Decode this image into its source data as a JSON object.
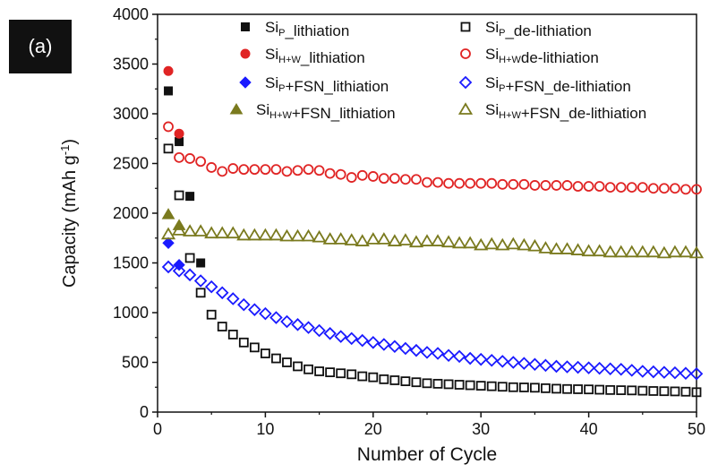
{
  "panel_label": "(a)",
  "colors": {
    "black": "#111111",
    "red": "#e02424",
    "blue": "#1a1aff",
    "olive": "#7a7a1e"
  },
  "chart_data": {
    "type": "scatter",
    "xlabel": "Number of Cycle",
    "ylabel": "Capacity (mAh g-1)",
    "ylabel_parts": {
      "main": "Capacity (mAh g",
      "sup": "-1",
      "close": ")"
    },
    "xlim": [
      0,
      50
    ],
    "ylim": [
      0,
      4000
    ],
    "xticks": [
      0,
      10,
      20,
      30,
      40,
      50
    ],
    "yticks": [
      0,
      500,
      1000,
      1500,
      2000,
      2500,
      3000,
      3500,
      4000
    ],
    "grid": false,
    "legend_position": "top",
    "series": [
      {
        "name": "SiP_lithiation",
        "label_parts": [
          [
            "Si",
            ""
          ],
          [
            "P",
            "sub"
          ],
          [
            "_lithiation",
            ""
          ]
        ],
        "color": "black",
        "marker": "square",
        "filled": true,
        "x": [
          1,
          2,
          3,
          4
        ],
        "y": [
          3230,
          2720,
          2170,
          1500
        ]
      },
      {
        "name": "SiP_de-lithiation",
        "label_parts": [
          [
            "Si",
            ""
          ],
          [
            "P",
            "sub"
          ],
          [
            "_de-lithiation",
            ""
          ]
        ],
        "color": "black",
        "marker": "square",
        "filled": false,
        "x": [
          1,
          2,
          3,
          4,
          5,
          6,
          7,
          8,
          9,
          10,
          11,
          12,
          13,
          14,
          15,
          16,
          17,
          18,
          19,
          20,
          21,
          22,
          23,
          24,
          25,
          26,
          27,
          28,
          29,
          30,
          31,
          32,
          33,
          34,
          35,
          36,
          37,
          38,
          39,
          40,
          41,
          42,
          43,
          44,
          45,
          46,
          47,
          48,
          49,
          50
        ],
        "y": [
          2650,
          2180,
          1550,
          1200,
          980,
          860,
          780,
          700,
          650,
          590,
          540,
          500,
          460,
          430,
          410,
          400,
          390,
          380,
          360,
          350,
          330,
          320,
          310,
          300,
          290,
          285,
          280,
          275,
          270,
          265,
          260,
          255,
          250,
          248,
          245,
          240,
          235,
          232,
          230,
          228,
          225,
          222,
          220,
          218,
          215,
          212,
          210,
          208,
          205,
          200
        ]
      },
      {
        "name": "SiH+W_lithiation",
        "label_parts": [
          [
            "Si",
            ""
          ],
          [
            "H+W",
            "sub"
          ],
          [
            "_lithiation",
            ""
          ]
        ],
        "color": "red",
        "marker": "circle",
        "filled": true,
        "x": [
          1,
          2
        ],
        "y": [
          3430,
          2800
        ]
      },
      {
        "name": "SiH+W_de-lithiation",
        "label_parts": [
          [
            "Si",
            ""
          ],
          [
            "H+W",
            "sub"
          ],
          [
            "de-lithiation",
            ""
          ]
        ],
        "color": "red",
        "marker": "circle",
        "filled": false,
        "x": [
          1,
          2,
          3,
          4,
          5,
          6,
          7,
          8,
          9,
          10,
          11,
          12,
          13,
          14,
          15,
          16,
          17,
          18,
          19,
          20,
          21,
          22,
          23,
          24,
          25,
          26,
          27,
          28,
          29,
          30,
          31,
          32,
          33,
          34,
          35,
          36,
          37,
          38,
          39,
          40,
          41,
          42,
          43,
          44,
          45,
          46,
          47,
          48,
          49,
          50
        ],
        "y": [
          2870,
          2560,
          2550,
          2520,
          2460,
          2420,
          2450,
          2440,
          2440,
          2440,
          2440,
          2420,
          2430,
          2440,
          2430,
          2400,
          2390,
          2360,
          2380,
          2370,
          2350,
          2350,
          2340,
          2340,
          2310,
          2310,
          2300,
          2300,
          2300,
          2300,
          2300,
          2290,
          2290,
          2290,
          2280,
          2280,
          2280,
          2280,
          2270,
          2270,
          2270,
          2260,
          2260,
          2260,
          2260,
          2250,
          2250,
          2250,
          2240,
          2240
        ]
      },
      {
        "name": "SiP+FSN_lithiation",
        "label_parts": [
          [
            "Si",
            ""
          ],
          [
            "P",
            "sub"
          ],
          [
            "+FSN_lithiation",
            ""
          ]
        ],
        "color": "blue",
        "marker": "diamond",
        "filled": true,
        "x": [
          1,
          2
        ],
        "y": [
          1700,
          1480
        ]
      },
      {
        "name": "SiP+FSN_de-lithiation",
        "label_parts": [
          [
            "Si",
            ""
          ],
          [
            "P",
            "sub"
          ],
          [
            "+FSN_de-lithiation",
            ""
          ]
        ],
        "color": "blue",
        "marker": "diamond",
        "filled": false,
        "x": [
          1,
          2,
          3,
          4,
          5,
          6,
          7,
          8,
          9,
          10,
          11,
          12,
          13,
          14,
          15,
          16,
          17,
          18,
          19,
          20,
          21,
          22,
          23,
          24,
          25,
          26,
          27,
          28,
          29,
          30,
          31,
          32,
          33,
          34,
          35,
          36,
          37,
          38,
          39,
          40,
          41,
          42,
          43,
          44,
          45,
          46,
          47,
          48,
          49,
          50
        ],
        "y": [
          1460,
          1420,
          1380,
          1320,
          1260,
          1200,
          1140,
          1080,
          1030,
          990,
          950,
          910,
          880,
          850,
          820,
          790,
          760,
          740,
          720,
          700,
          680,
          660,
          640,
          620,
          600,
          590,
          570,
          560,
          540,
          530,
          520,
          510,
          500,
          490,
          480,
          470,
          460,
          455,
          450,
          445,
          440,
          435,
          430,
          420,
          410,
          405,
          400,
          395,
          390,
          385
        ]
      },
      {
        "name": "SiH+W+FSN_lithiation",
        "label_parts": [
          [
            "Si",
            ""
          ],
          [
            "H+W",
            "sub"
          ],
          [
            "+FSN_lithiation",
            ""
          ]
        ],
        "color": "olive",
        "marker": "triangle",
        "filled": true,
        "x": [
          1,
          2
        ],
        "y": [
          1990,
          1880
        ]
      },
      {
        "name": "SiH+W+FSN_de-lithiation",
        "label_parts": [
          [
            "Si",
            ""
          ],
          [
            "H+W",
            "sub"
          ],
          [
            "+FSN_de-lithiation",
            ""
          ]
        ],
        "color": "olive",
        "marker": "triangle",
        "filled": false,
        "x": [
          1,
          2,
          3,
          4,
          5,
          6,
          7,
          8,
          9,
          10,
          11,
          12,
          13,
          14,
          15,
          16,
          17,
          18,
          19,
          20,
          21,
          22,
          23,
          24,
          25,
          26,
          27,
          28,
          29,
          30,
          31,
          32,
          33,
          34,
          35,
          36,
          37,
          38,
          39,
          40,
          41,
          42,
          43,
          44,
          45,
          46,
          47,
          48,
          49,
          50
        ],
        "y": [
          1790,
          1830,
          1820,
          1820,
          1800,
          1800,
          1800,
          1780,
          1780,
          1780,
          1780,
          1770,
          1770,
          1770,
          1760,
          1740,
          1740,
          1730,
          1720,
          1740,
          1740,
          1720,
          1730,
          1710,
          1720,
          1720,
          1710,
          1700,
          1700,
          1680,
          1690,
          1680,
          1690,
          1680,
          1670,
          1650,
          1640,
          1640,
          1630,
          1620,
          1620,
          1610,
          1610,
          1610,
          1610,
          1610,
          1600,
          1610,
          1610,
          1600
        ]
      }
    ]
  }
}
